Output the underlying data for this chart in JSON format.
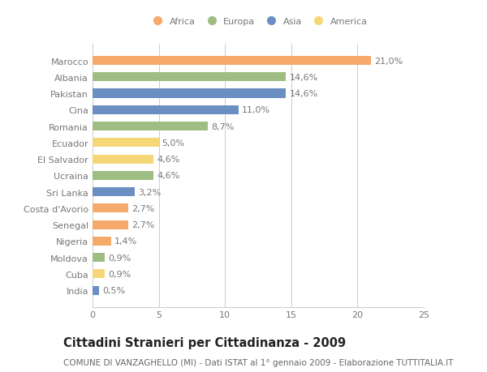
{
  "countries": [
    "Marocco",
    "Albania",
    "Pakistan",
    "Cina",
    "Romania",
    "Ecuador",
    "El Salvador",
    "Ucraina",
    "Sri Lanka",
    "Costa d'Avorio",
    "Senegal",
    "Nigeria",
    "Moldova",
    "Cuba",
    "India"
  ],
  "values": [
    21.0,
    14.6,
    14.6,
    11.0,
    8.7,
    5.0,
    4.6,
    4.6,
    3.2,
    2.7,
    2.7,
    1.4,
    0.9,
    0.9,
    0.5
  ],
  "labels": [
    "21,0%",
    "14,6%",
    "14,6%",
    "11,0%",
    "8,7%",
    "5,0%",
    "4,6%",
    "4,6%",
    "3,2%",
    "2,7%",
    "2,7%",
    "1,4%",
    "0,9%",
    "0,9%",
    "0,5%"
  ],
  "continents": [
    "Africa",
    "Europa",
    "Asia",
    "Asia",
    "Europa",
    "America",
    "America",
    "Europa",
    "Asia",
    "Africa",
    "Africa",
    "Africa",
    "Europa",
    "America",
    "Asia"
  ],
  "continent_colors": {
    "Africa": "#F5A96A",
    "Europa": "#9DBD82",
    "Asia": "#6B8FC2",
    "America": "#F5D778"
  },
  "legend_order": [
    "Africa",
    "Europa",
    "Asia",
    "America"
  ],
  "title": "Cittadini Stranieri per Cittadinanza - 2009",
  "subtitle": "COMUNE DI VANZAGHELLO (MI) - Dati ISTAT al 1° gennaio 2009 - Elaborazione TUTTITALIA.IT",
  "xlim": [
    0,
    25
  ],
  "xticks": [
    0,
    5,
    10,
    15,
    20,
    25
  ],
  "bg_color": "#ffffff",
  "bar_height": 0.55,
  "grid_color": "#cccccc",
  "label_color": "#777777",
  "label_fontsize": 8.0,
  "tick_fontsize": 8.0,
  "title_fontsize": 10.5,
  "subtitle_fontsize": 7.5
}
